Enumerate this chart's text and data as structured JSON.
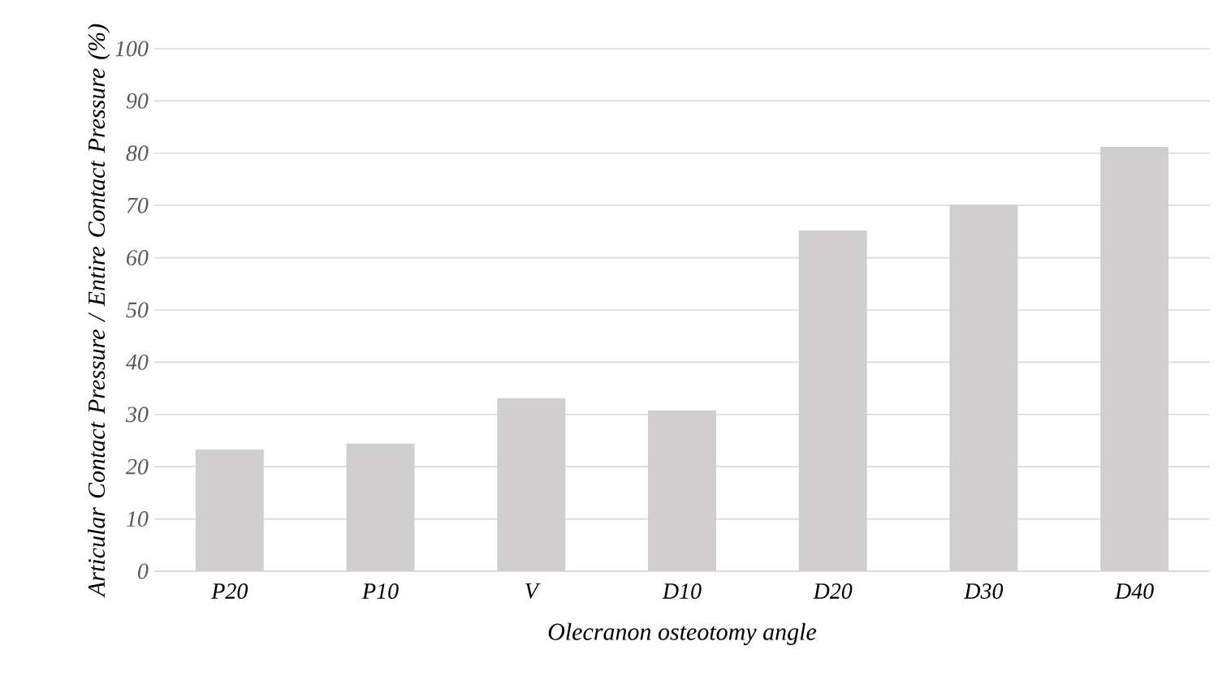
{
  "chart_data": {
    "type": "bar",
    "xlabel": "Olecranon osteotomy angle",
    "ylabel": "Articular Contact Pressure / Entire Contact Pressure (%)",
    "categories": [
      "P20",
      "P10",
      "V",
      "D10",
      "D20",
      "D30",
      "D40"
    ],
    "values": [
      23.3,
      24.4,
      33.1,
      30.8,
      65.2,
      70.2,
      81.2
    ],
    "color": "#d0cecf",
    "ylim": [
      0,
      100
    ],
    "yticks": [
      0,
      10,
      20,
      30,
      40,
      50,
      60,
      70,
      80,
      90,
      100
    ],
    "grid": "y"
  }
}
